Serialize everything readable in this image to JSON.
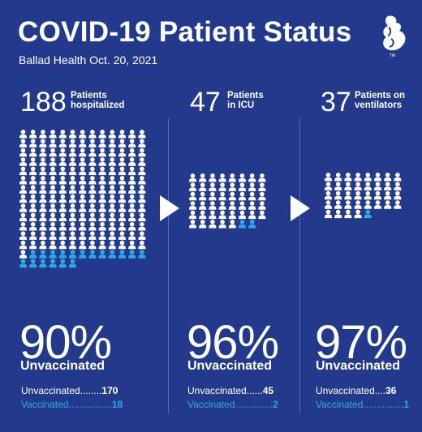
{
  "header": {
    "title": "COVID-19 Patient Status",
    "subtitle": "Ballad Health Oct. 20, 2021"
  },
  "colors": {
    "background": "#233a8c",
    "unvaccinated": "#ffffff",
    "vaccinated": "#2fa9e6",
    "divider": "#5a6cb0"
  },
  "icons": {
    "logo": "ballad-health-logo-icon",
    "person": "person-icon",
    "arrow": "arrow-right-icon"
  },
  "chart_data": [
    {
      "type": "pictogram",
      "count": "188",
      "label_line1": "Patients",
      "label_line2": "hospitalized",
      "total": 188,
      "unvaccinated": 170,
      "vaccinated": 18,
      "percent": "90%",
      "percent_label": "Unvaccinated",
      "unvax_label": "Unvaccinated",
      "unvax_dots": "........",
      "unvax_value": "170",
      "vax_label": "Vaccinated",
      "vax_dots": "................",
      "vax_value": "18"
    },
    {
      "type": "pictogram",
      "count": "47",
      "label_line1": "Patients",
      "label_line2": "in ICU",
      "total": 47,
      "unvaccinated": 45,
      "vaccinated": 2,
      "percent": "96%",
      "percent_label": "Unvaccinated",
      "unvax_label": "Unvaccinated",
      "unvax_dots": "......",
      "unvax_value": "45",
      "vax_label": "Vaccinated",
      "vax_dots": "..............",
      "vax_value": "2"
    },
    {
      "type": "pictogram",
      "count": "37",
      "label_line1": "Patients on",
      "label_line2": "ventilators",
      "total": 37,
      "unvaccinated": 36,
      "vaccinated": 1,
      "percent": "97%",
      "percent_label": "Unvaccinated",
      "unvax_label": "Unvaccinated",
      "unvax_dots": "....",
      "unvax_value": "36",
      "vax_label": "Vaccinated",
      "vax_dots": "...............",
      "vax_value": "1"
    }
  ]
}
